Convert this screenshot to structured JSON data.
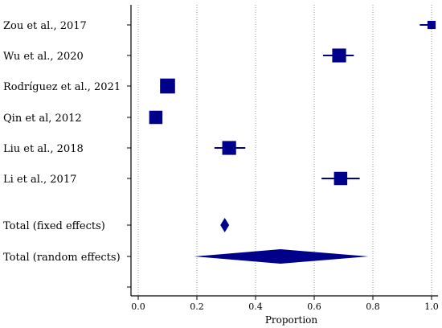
{
  "chart_data": {
    "type": "forest",
    "xlabel": "Proportion",
    "xlim": [
      0.0,
      1.0
    ],
    "xticks": [
      "0.0",
      "0.2",
      "0.4",
      "0.6",
      "0.8",
      "1.0"
    ],
    "grid": "vertical-dotted",
    "colors": {
      "marker": "#00008B",
      "axis": "#000000",
      "grid": "#999999"
    },
    "studies": [
      {
        "label": "Zou et al., 2017",
        "estimate": 1.0,
        "ci": [
          0.96,
          1.0
        ],
        "weight": 0.3
      },
      {
        "label": "Wu et al., 2020",
        "estimate": 0.685,
        "ci": [
          0.63,
          0.735
        ],
        "weight": 0.8
      },
      {
        "label": "Rodríguez et al., 2021",
        "estimate": 0.1,
        "ci": [
          0.075,
          0.125
        ],
        "weight": 0.9
      },
      {
        "label": "Qin et al, 2012",
        "estimate": 0.06,
        "ci": [
          0.04,
          0.08
        ],
        "weight": 0.75
      },
      {
        "label": "Liu et al., 2018",
        "estimate": 0.31,
        "ci": [
          0.26,
          0.365
        ],
        "weight": 0.8
      },
      {
        "label": "Li et al., 2017",
        "estimate": 0.69,
        "ci": [
          0.625,
          0.755
        ],
        "weight": 0.75
      }
    ],
    "summaries": [
      {
        "label": "Total (fixed effects)",
        "estimate": 0.295,
        "ci": [
          0.28,
          0.31
        ]
      },
      {
        "label": "Total (random effects)",
        "estimate": 0.485,
        "ci": [
          0.19,
          0.785
        ]
      }
    ]
  }
}
